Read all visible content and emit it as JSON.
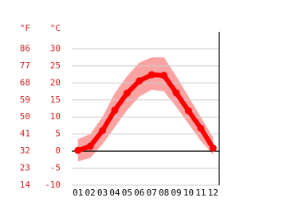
{
  "chart_data": {
    "type": "line",
    "y2_label": "°F",
    "y_label": "°C",
    "categories": [
      "01",
      "02",
      "03",
      "04",
      "05",
      "06",
      "07",
      "08",
      "09",
      "10",
      "11",
      "12"
    ],
    "series": [
      {
        "color": "#ff0000",
        "values": [
          0.2,
          1.4,
          6,
          12,
          17,
          20.6,
          22.4,
          22.2,
          17.1,
          11.8,
          6.7,
          0.9
        ]
      }
    ],
    "band": {
      "color": "#f9a3a3",
      "upper": [
        3.5,
        5,
        10,
        17,
        22,
        26,
        27.5,
        27.5,
        22,
        16,
        10,
        4
      ],
      "lower": [
        -3,
        -2,
        2,
        7,
        12,
        16,
        18,
        17.5,
        13,
        8,
        3,
        -1
      ]
    },
    "ylim": [
      -10,
      35
    ],
    "yticks": [
      -10,
      -5,
      0,
      5,
      10,
      15,
      20,
      25,
      30
    ],
    "y2lim": [
      14,
      95
    ],
    "y2ticks": [
      14,
      23,
      32,
      41,
      50,
      59,
      68,
      77,
      86
    ],
    "grid": true
  }
}
